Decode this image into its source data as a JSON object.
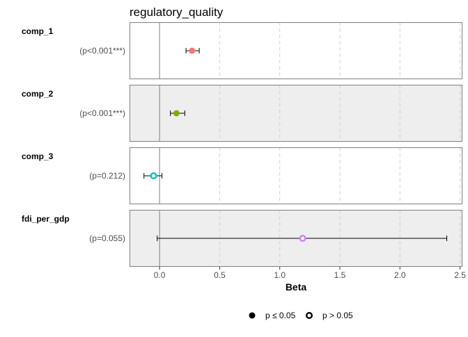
{
  "chart_data": {
    "type": "scatter",
    "subtype": "coefficient-plot",
    "title": "regulatory_quality",
    "xlabel": "Beta",
    "xlim": [
      -0.25,
      2.52
    ],
    "x_ticks": [
      0.0,
      0.5,
      1.0,
      1.5,
      2.0,
      2.5
    ],
    "x_tick_labels": [
      "0.0",
      "0.5",
      "1.0",
      "1.5",
      "2.0",
      "2.5"
    ],
    "reference_line": 0,
    "grid": "vertical dashed",
    "legend_position": "bottom",
    "legend": [
      {
        "label": "p ≤ 0.05",
        "shape": "filled-circle"
      },
      {
        "label": "p > 0.05",
        "shape": "open-circle"
      }
    ],
    "panels": [
      {
        "name": "comp_1",
        "p_label": "(p<0.001***)",
        "estimate": 0.27,
        "ci_low": 0.22,
        "ci_high": 0.33,
        "significant": true,
        "color": "#F8766D",
        "background": "#FFFFFF"
      },
      {
        "name": "comp_2",
        "p_label": "(p<0.001***)",
        "estimate": 0.14,
        "ci_low": 0.09,
        "ci_high": 0.21,
        "significant": true,
        "color": "#7CAE00",
        "background": "#EEEEEE"
      },
      {
        "name": "comp_3",
        "p_label": "(p=0.212)",
        "estimate": -0.05,
        "ci_low": -0.13,
        "ci_high": 0.02,
        "significant": false,
        "color": "#00BFC4",
        "background": "#FFFFFF"
      },
      {
        "name": "fdi_per_gdp",
        "p_label": "(p=0.055)",
        "estimate": 1.19,
        "ci_low": -0.02,
        "ci_high": 2.39,
        "significant": false,
        "color": "#C77CFF",
        "background": "#EEEEEE"
      }
    ]
  }
}
